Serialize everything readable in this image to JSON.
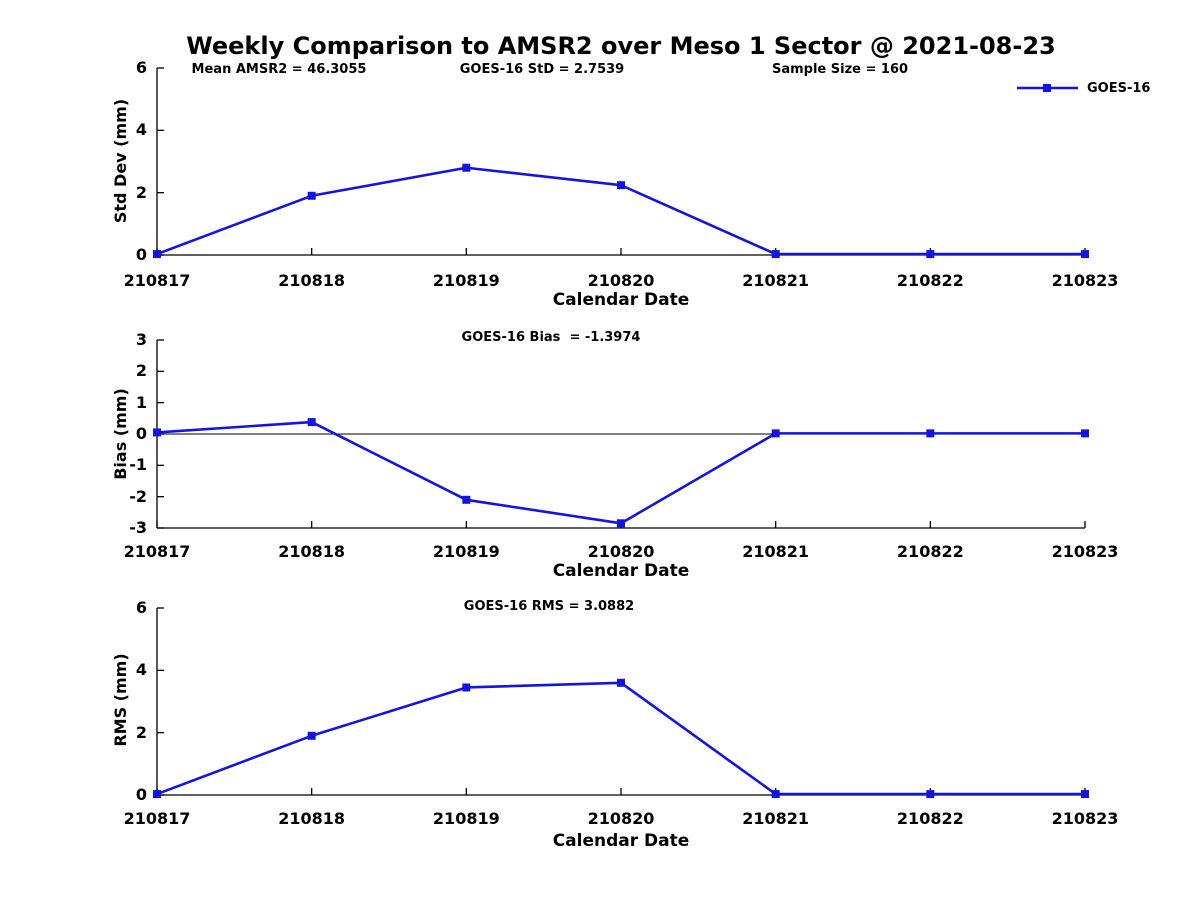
{
  "title": "Weekly Comparison to AMSR2 over Meso 1 Sector @ 2021-08-23",
  "colors": {
    "series": "#1414E0",
    "axis": "#000000"
  },
  "legend": {
    "label": "GOES-16",
    "marker": "filled-square"
  },
  "chart_data": [
    {
      "type": "line",
      "ylabel": "Std Dev (mm)",
      "xlabel": "Calendar Date",
      "categories": [
        "210817",
        "210818",
        "210819",
        "210820",
        "210821",
        "210822",
        "210823"
      ],
      "series": [
        {
          "name": "GOES-16",
          "values": [
            0.03,
            1.9,
            2.8,
            2.24,
            0.03,
            0.03,
            0.03
          ]
        }
      ],
      "ylim": [
        0,
        6
      ],
      "yticks": [
        0,
        2,
        4,
        6
      ],
      "grid": false,
      "zero_line": false,
      "legend_position": "top-right",
      "annotations": [
        "Mean AMSR2 = 46.3055",
        "GOES-16 StD = 2.7539",
        "Sample Size = 160"
      ]
    },
    {
      "type": "line",
      "ylabel": "Bias (mm)",
      "xlabel": "Calendar Date",
      "categories": [
        "210817",
        "210818",
        "210819",
        "210820",
        "210821",
        "210822",
        "210823"
      ],
      "series": [
        {
          "name": "GOES-16",
          "values": [
            0.05,
            0.38,
            -2.1,
            -2.85,
            0.02,
            0.02,
            0.02
          ]
        }
      ],
      "ylim": [
        -3,
        3
      ],
      "yticks": [
        -3,
        -2,
        -1,
        0,
        1,
        2,
        3
      ],
      "grid": false,
      "zero_line": true,
      "legend_position": "none",
      "annotations": [
        "GOES-16 Bias  = -1.3974"
      ]
    },
    {
      "type": "line",
      "ylabel": "RMS (mm)",
      "xlabel": "Calendar Date",
      "categories": [
        "210817",
        "210818",
        "210819",
        "210820",
        "210821",
        "210822",
        "210823"
      ],
      "series": [
        {
          "name": "GOES-16",
          "values": [
            0.03,
            1.9,
            3.45,
            3.6,
            0.03,
            0.03,
            0.03
          ]
        }
      ],
      "ylim": [
        0,
        6
      ],
      "yticks": [
        0,
        2,
        4,
        6
      ],
      "grid": false,
      "zero_line": false,
      "legend_position": "none",
      "annotations": [
        "GOES-16 RMS = 3.0882"
      ]
    }
  ]
}
